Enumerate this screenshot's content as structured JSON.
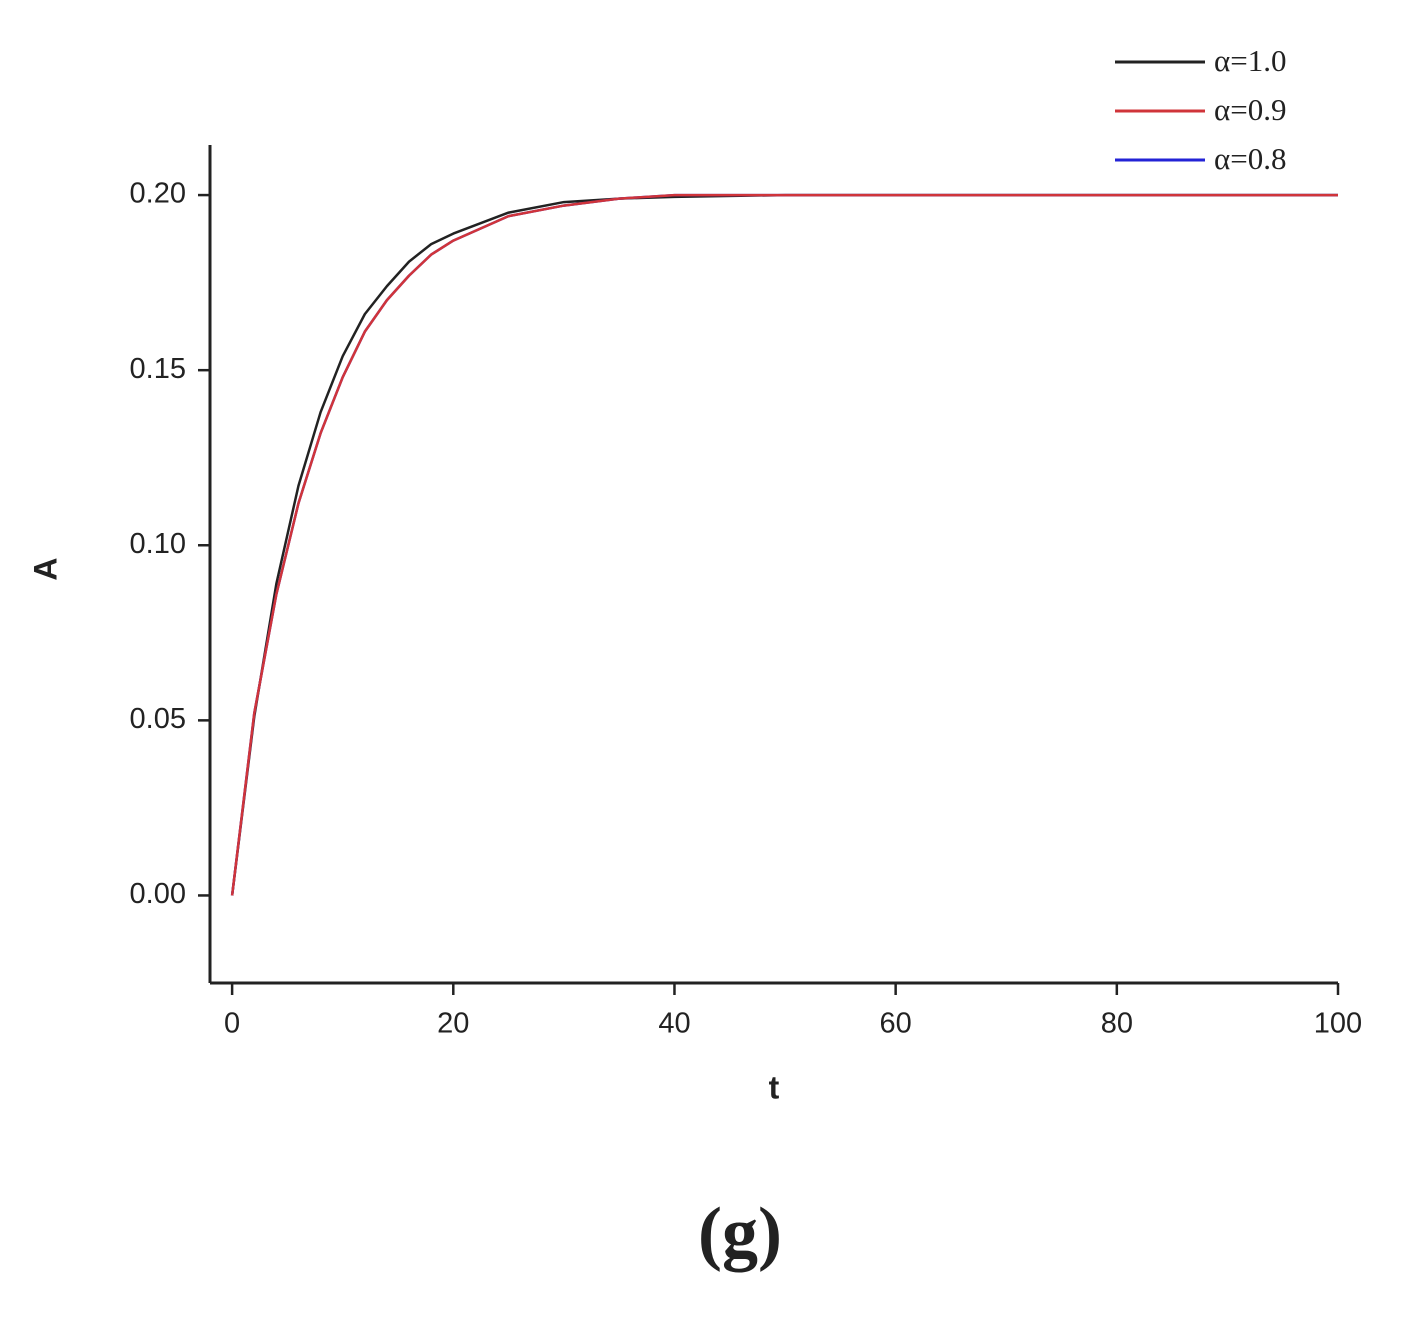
{
  "chart_data": {
    "type": "line",
    "caption": "(g)",
    "xlabel": "t",
    "ylabel": "A",
    "x": [
      0,
      2,
      4,
      6,
      8,
      10,
      12,
      14,
      16,
      18,
      20,
      25,
      30,
      35,
      40,
      50,
      60,
      80,
      100
    ],
    "series": [
      {
        "name": "α=1.0",
        "color": "#222222",
        "values": [
          0,
          0.051,
          0.089,
          0.117,
          0.138,
          0.154,
          0.166,
          0.174,
          0.181,
          0.186,
          0.189,
          0.195,
          0.198,
          0.199,
          0.1995,
          0.2,
          0.2,
          0.2,
          0.2
        ]
      },
      {
        "name": "α=0.9",
        "color": "#d0343a",
        "values": [
          0,
          0.052,
          0.086,
          0.112,
          0.132,
          0.148,
          0.161,
          0.17,
          0.177,
          0.183,
          0.187,
          0.194,
          0.197,
          0.199,
          0.2,
          0.2,
          0.2,
          0.2,
          0.2
        ]
      },
      {
        "name": "α=0.8",
        "color": "#2323d6",
        "values": [
          0,
          0.052,
          0.086,
          0.112,
          0.132,
          0.148,
          0.161,
          0.17,
          0.177,
          0.183,
          0.187,
          0.194,
          0.197,
          0.199,
          0.2,
          0.2,
          0.2,
          0.2,
          0.2
        ]
      }
    ],
    "draw_order": [
      0,
      2,
      1
    ],
    "xlim": [
      -2,
      100
    ],
    "ylim": [
      -0.025,
      0.2143
    ],
    "xticks": [
      0,
      20,
      40,
      60,
      80,
      100
    ],
    "yticks": [
      {
        "value": 0,
        "label": "0.00"
      },
      0.05,
      {
        "value": 0.1,
        "label": "0.10"
      },
      0.15,
      {
        "value": 0.2,
        "label": "0.20"
      }
    ],
    "legend": "top-right",
    "grid": false
  }
}
